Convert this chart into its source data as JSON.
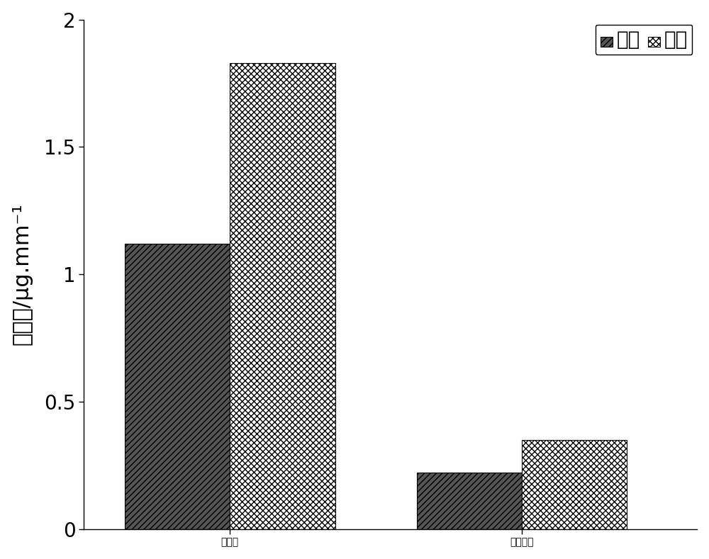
{
  "categories": [
    "未处理",
    "熊覆处理"
  ],
  "rail_values": [
    1.12,
    0.22
  ],
  "wheel_values": [
    1.83,
    0.35
  ],
  "ylabel": "磨损率/μg.mm⁻¹",
  "legend_rail": "钒轨",
  "legend_wheel": "车轮",
  "ylim": [
    0,
    2.0
  ],
  "yticks": [
    0,
    0.5,
    1.0,
    1.5,
    2
  ],
  "bar_width": 0.18,
  "background_color": "#ffffff",
  "rail_hatch": "////",
  "wheel_hatch": "xxxx",
  "rail_facecolor": "#555555",
  "wheel_facecolor": "#ffffff",
  "rail_edgecolor": "#000000",
  "wheel_edgecolor": "#000000",
  "label_fontsize": 22,
  "tick_fontsize": 20,
  "legend_fontsize": 20,
  "group_centers": [
    0.3,
    0.8
  ],
  "xlim": [
    0.05,
    1.1
  ]
}
